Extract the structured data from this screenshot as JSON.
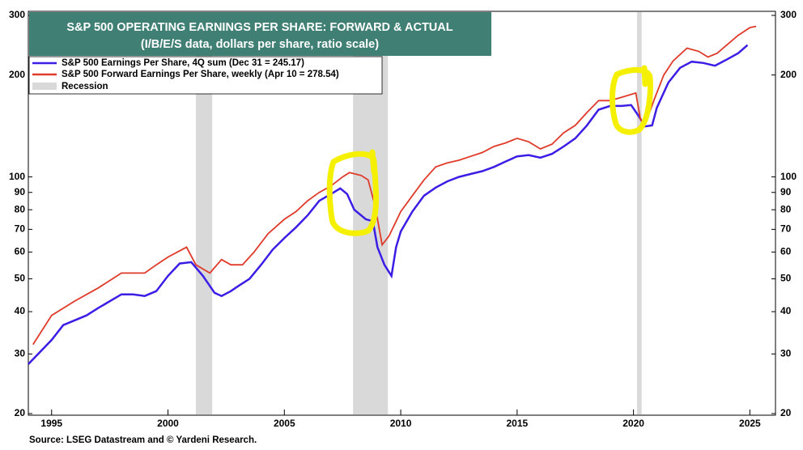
{
  "chart_data": {
    "type": "line",
    "title": "S&P 500 OPERATING EARNINGS PER SHARE: FORWARD & ACTUAL",
    "subtitle": "(I/B/E/S data, dollars per share, ratio scale)",
    "source": "Source: LSEG Datastream and © Yardeni Research.",
    "log_scale": true,
    "xlim": [
      1994,
      2026.1
    ],
    "xticks": [
      1995,
      2000,
      2005,
      2010,
      2015,
      2020,
      2025
    ],
    "ylim": [
      20,
      300
    ],
    "yticks": [
      20,
      30,
      40,
      50,
      60,
      70,
      80,
      90,
      100,
      200,
      300
    ],
    "recession_name": "Recession",
    "recession_color": "#d9d9d9",
    "recessions": [
      [
        2001.2,
        2001.9
      ],
      [
        2007.95,
        2009.45
      ],
      [
        2020.15,
        2020.35
      ]
    ],
    "series": [
      {
        "name": "S&P 500 Earnings Per Share, 4Q sum (Dec 31 = 245.17)",
        "color": "#3b1ee6",
        "x": [
          1994.0,
          1995.0,
          1995.5,
          1996.5,
          1997.0,
          1998.0,
          1998.5,
          1999.0,
          1999.5,
          2000.0,
          2000.5,
          2001.0,
          2001.5,
          2002.0,
          2002.3,
          2002.7,
          2003.0,
          2003.5,
          2004.0,
          2004.5,
          2005.0,
          2005.5,
          2006.0,
          2006.5,
          2007.0,
          2007.4,
          2007.7,
          2008.0,
          2008.5,
          2008.8,
          2009.0,
          2009.3,
          2009.6,
          2009.8,
          2010.0,
          2010.5,
          2011.0,
          2011.5,
          2012.0,
          2012.5,
          2013.0,
          2013.5,
          2014.0,
          2014.5,
          2015.0,
          2015.5,
          2016.0,
          2016.5,
          2017.0,
          2017.5,
          2018.0,
          2018.5,
          2019.0,
          2019.5,
          2019.9,
          2020.2,
          2020.5,
          2020.8,
          2021.0,
          2021.5,
          2022.0,
          2022.5,
          2023.0,
          2023.5,
          2024.0,
          2024.5,
          2024.9
        ],
        "values": [
          28,
          33,
          36.5,
          39,
          41,
          45,
          45,
          44.5,
          46,
          51,
          55.5,
          56,
          51,
          45.5,
          44.5,
          46,
          47.5,
          50,
          55,
          61,
          66,
          71,
          77,
          85,
          89,
          92.5,
          89,
          80,
          75,
          74,
          62,
          55,
          51,
          62,
          69,
          79,
          88,
          93,
          97,
          100,
          102,
          104,
          107,
          111,
          115,
          116,
          114,
          117,
          123,
          130,
          142,
          158,
          162,
          162,
          163,
          152,
          141,
          142,
          160,
          190,
          210,
          219,
          217,
          213,
          222,
          232,
          245.17
        ]
      },
      {
        "name": "S&P 500 Forward Earnings Per Share, weekly (Apr 10 = 278.54)",
        "color": "#e03a2a",
        "x": [
          1994.2,
          1995.0,
          1996.0,
          1997.0,
          1998.0,
          1999.0,
          1999.5,
          2000.0,
          2000.8,
          2001.2,
          2001.8,
          2002.3,
          2002.7,
          2003.2,
          2003.7,
          2004.3,
          2005.0,
          2005.5,
          2006.0,
          2006.5,
          2007.0,
          2007.5,
          2007.8,
          2008.3,
          2008.6,
          2008.9,
          2009.2,
          2009.5,
          2010.0,
          2010.5,
          2011.0,
          2011.5,
          2012.0,
          2012.5,
          2013.0,
          2013.5,
          2014.0,
          2014.5,
          2015.0,
          2015.5,
          2016.0,
          2016.5,
          2017.0,
          2017.5,
          2018.0,
          2018.5,
          2019.0,
          2019.5,
          2020.1,
          2020.3,
          2020.5,
          2020.9,
          2021.3,
          2021.7,
          2022.3,
          2022.8,
          2023.2,
          2023.6,
          2024.0,
          2024.5,
          2025.0,
          2025.27
        ],
        "values": [
          32,
          39,
          43,
          47,
          52,
          52,
          55,
          58,
          62,
          55,
          52,
          57,
          55,
          55,
          60,
          68,
          75,
          79,
          85,
          90,
          94,
          100,
          103,
          101,
          98,
          82,
          63,
          67,
          79,
          88,
          98,
          107,
          110,
          112,
          115,
          118,
          123,
          126,
          130,
          127,
          121,
          125,
          135,
          142,
          155,
          168,
          168,
          172,
          177,
          148,
          143,
          170,
          200,
          220,
          240,
          235,
          226,
          232,
          245,
          262,
          276,
          278.54
        ]
      }
    ]
  }
}
